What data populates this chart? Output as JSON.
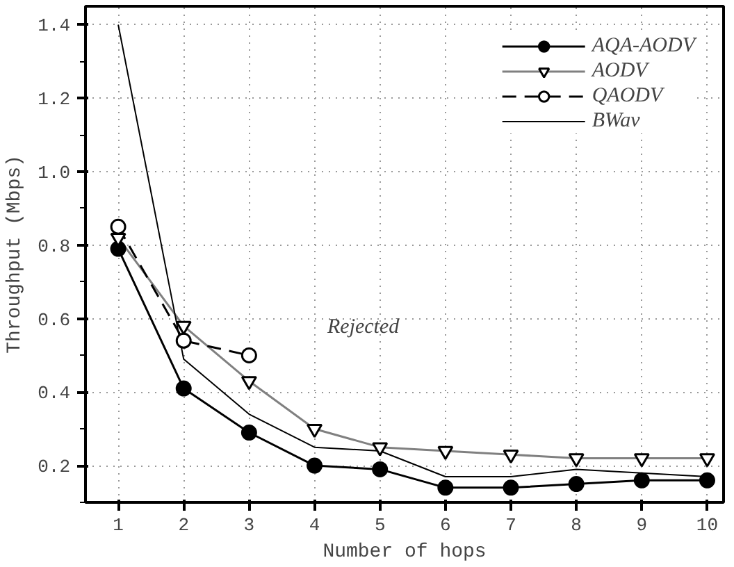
{
  "chart_data": {
    "type": "line",
    "xlabel": "Number of hops",
    "ylabel": "Throughput (Mbps)",
    "x": [
      1,
      2,
      3,
      4,
      5,
      6,
      7,
      8,
      9,
      10
    ],
    "series": [
      {
        "name": "AQA-AODV",
        "color": "#000000",
        "marker": "circle",
        "line_style": "solid",
        "values": [
          0.79,
          0.41,
          0.29,
          0.2,
          0.19,
          0.14,
          0.14,
          0.15,
          0.16,
          0.16
        ]
      },
      {
        "name": "AODV",
        "color": "#808080",
        "marker": "triangle",
        "line_style": "solid",
        "values": [
          0.82,
          0.58,
          0.43,
          0.3,
          0.25,
          0.24,
          0.23,
          0.22,
          0.22,
          0.22
        ]
      },
      {
        "name": "QAODV",
        "color": "#000000",
        "marker": "circle",
        "line_style": "dashed",
        "values": [
          0.85,
          0.54,
          0.5,
          null,
          null,
          null,
          null,
          null,
          null,
          null
        ]
      },
      {
        "name": "BWav",
        "color": "#000000",
        "marker": "none",
        "line_style": "solid",
        "values": [
          1.4,
          0.49,
          0.34,
          0.25,
          0.24,
          0.17,
          0.17,
          0.19,
          0.18,
          0.17
        ]
      }
    ],
    "annotations": [
      "Rejected"
    ],
    "xlim": [
      0.5,
      10.25
    ],
    "ylim": [
      0.1,
      1.45
    ],
    "xticks": [
      1,
      2,
      3,
      4,
      5,
      6,
      7,
      8,
      9,
      10
    ],
    "yticks": [
      {
        "value": 0.2,
        "label": "0.2"
      },
      {
        "value": 0.4,
        "label": "0.4"
      },
      {
        "value": 0.6,
        "label": "0.6"
      },
      {
        "value": 0.8,
        "label": "0.8"
      },
      {
        "value": 1.0,
        "label": "1.0"
      },
      {
        "value": 1.2,
        "label": "1.2"
      },
      {
        "value": 1.4,
        "label": "1.4"
      }
    ],
    "grid": true,
    "legend": "top right"
  }
}
